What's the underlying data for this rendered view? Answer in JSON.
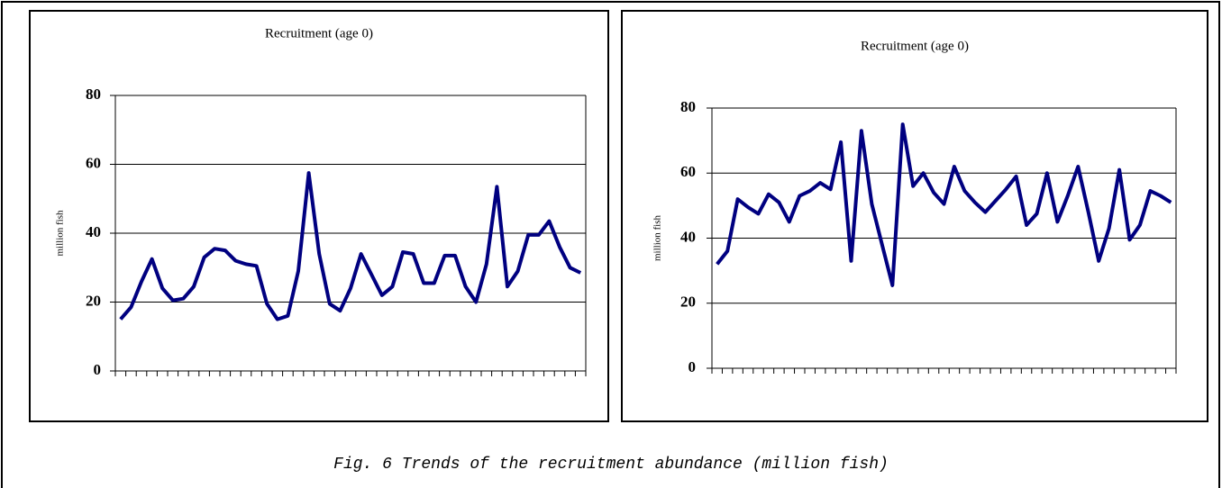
{
  "chart_data": [
    {
      "type": "line",
      "title": "Recruitment (age 0)",
      "y_label": "million fish",
      "categories": [
        null,
        null,
        null,
        null,
        null,
        null,
        null,
        null,
        null,
        null,
        null,
        null,
        null,
        null,
        null,
        null,
        null,
        null,
        null,
        null,
        null,
        null,
        null,
        null,
        null,
        null,
        null,
        null,
        null,
        null,
        null,
        null,
        null,
        null,
        null,
        null,
        null,
        null,
        null,
        null,
        null,
        null,
        null,
        null,
        null
      ],
      "series": [
        {
          "color": "#000080",
          "values": [
            15,
            18.5,
            26,
            32.5,
            24,
            20.5,
            21,
            24.5,
            33,
            35.5,
            35,
            32,
            31,
            30.5,
            19.5,
            15,
            16,
            29,
            57.5,
            34,
            19.5,
            17.5,
            24,
            34,
            28,
            22,
            24.5,
            34.5,
            34,
            25.5,
            25.5,
            33.5,
            33.5,
            24.5,
            20,
            31,
            53.5,
            24.5,
            29,
            39.5,
            39.5,
            43.5,
            36,
            30,
            28.5
          ]
        }
      ],
      "ylim": [
        0,
        80
      ],
      "yticks": [
        0,
        20,
        40,
        60,
        80
      ],
      "grid": true
    },
    {
      "type": "line",
      "title": "Recruitment (age 0)",
      "y_label": "million fish",
      "categories": [
        null,
        null,
        null,
        null,
        null,
        null,
        null,
        null,
        null,
        null,
        null,
        null,
        null,
        null,
        null,
        null,
        null,
        null,
        null,
        null,
        null,
        null,
        null,
        null,
        null,
        null,
        null,
        null,
        null,
        null,
        null,
        null,
        null,
        null,
        null,
        null,
        null,
        null,
        null,
        null,
        null,
        null,
        null,
        null,
        null
      ],
      "series": [
        {
          "color": "#000080",
          "values": [
            32,
            36,
            52,
            49.5,
            47.5,
            53.5,
            51,
            45,
            53,
            54.5,
            57,
            55,
            69.5,
            33,
            73,
            50.5,
            38,
            25.5,
            75,
            56,
            60,
            54,
            50.5,
            62,
            54.5,
            51,
            48,
            51.5,
            55,
            59,
            44,
            47.5,
            60,
            45,
            53,
            62,
            48,
            33,
            43,
            61,
            39.5,
            44,
            54.5,
            53,
            51
          ]
        }
      ],
      "ylim": [
        0,
        80
      ],
      "yticks": [
        0,
        20,
        40,
        60,
        80
      ],
      "grid": true
    }
  ],
  "caption": "Fig. 6 Trends of the recruitment abundance (million fish)"
}
